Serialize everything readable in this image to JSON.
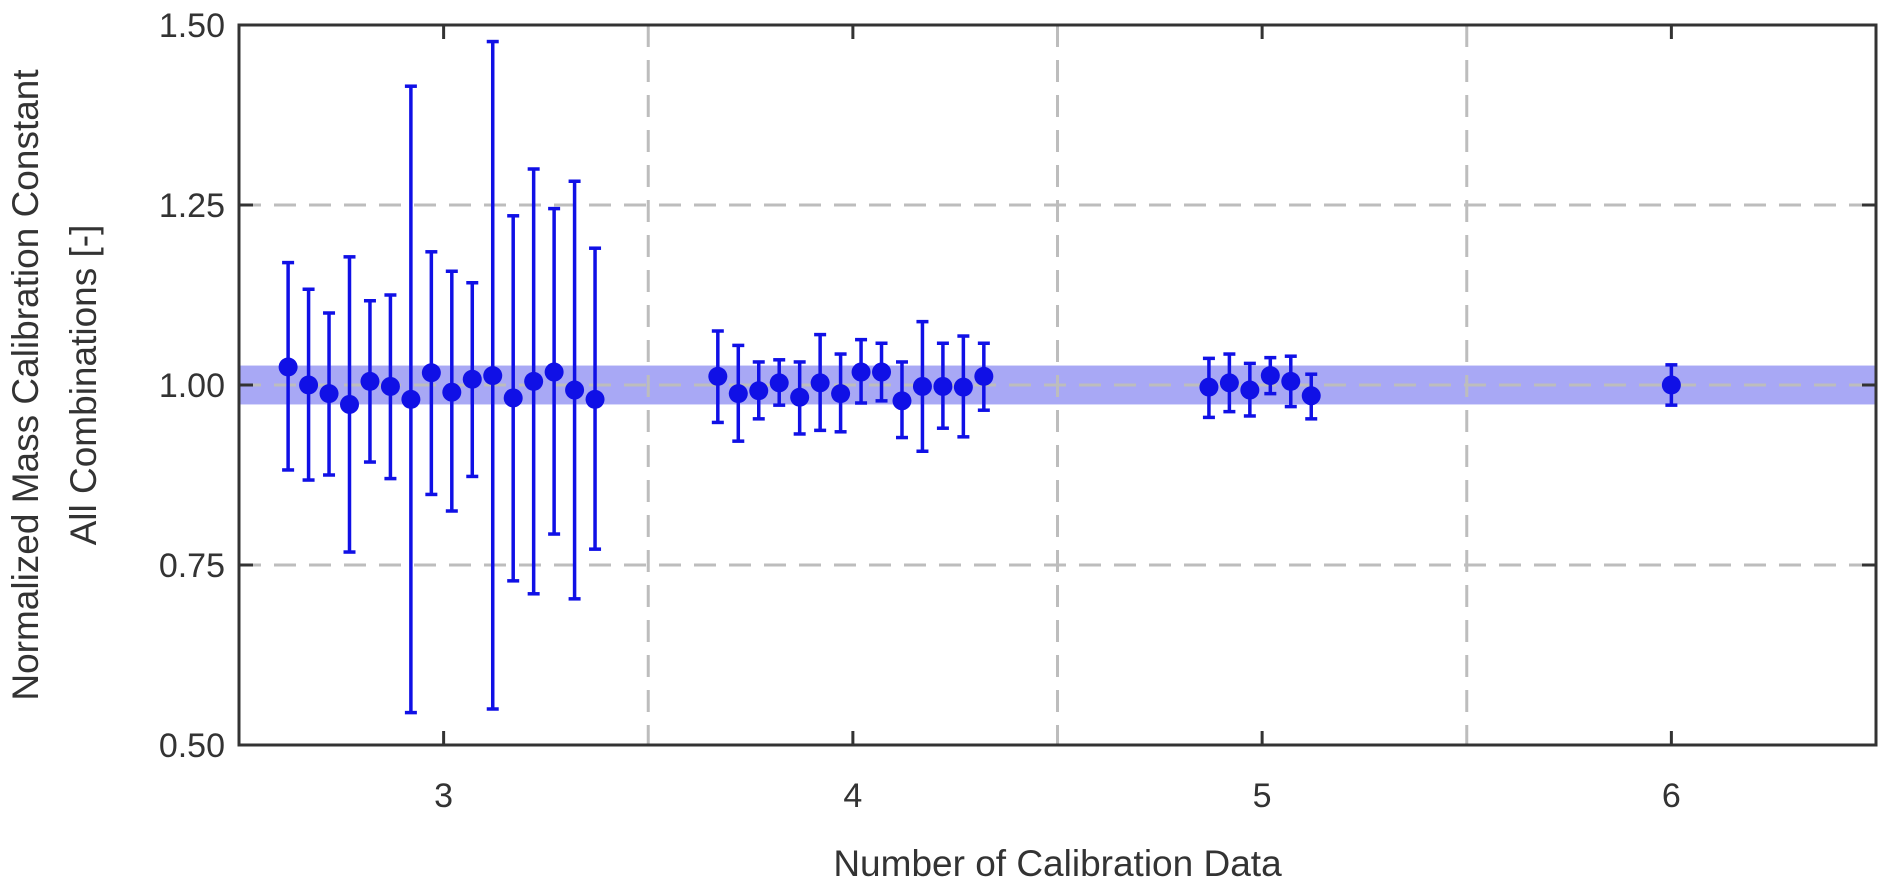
{
  "chart_data": {
    "type": "scatter",
    "title": "",
    "xlabel": "Number of Calibration Data",
    "ylabel_lines": [
      "Normalized Mass Calibration Constant",
      "All Combinations [-]"
    ],
    "xlim": [
      2.5,
      6.5
    ],
    "ylim": [
      0.5,
      1.5
    ],
    "xticks": [
      3,
      4,
      5,
      6
    ],
    "xtick_labels": [
      "3",
      "4",
      "5",
      "6"
    ],
    "yticks": [
      0.5,
      0.75,
      1.0,
      1.25,
      1.5
    ],
    "ytick_labels": [
      "0.50",
      "0.75",
      "1.00",
      "1.25",
      "1.50"
    ],
    "grid": {
      "horizontal": [
        0.75,
        1.0,
        1.25
      ],
      "vertical": [
        3.5,
        4.5,
        5.5
      ],
      "style": "dashed"
    },
    "band": {
      "lower": 0.973,
      "upper": 1.027,
      "color": "#a8a8f5"
    },
    "colors": {
      "points": "#1010e6",
      "grid": "#bdbdbd",
      "axes": "#333333"
    },
    "series": [
      {
        "x": [
          2.62,
          2.67,
          2.72,
          2.77,
          2.82,
          2.87,
          2.92,
          2.97,
          3.02,
          3.07,
          3.12,
          3.17,
          3.22,
          3.27,
          3.32,
          3.37
        ],
        "y": [
          1.025,
          1.0,
          0.988,
          0.973,
          1.005,
          0.998,
          0.98,
          1.017,
          0.99,
          1.008,
          1.013,
          0.982,
          1.005,
          1.018,
          0.993,
          0.98
        ],
        "y_low": [
          0.882,
          0.868,
          0.875,
          0.768,
          0.893,
          0.87,
          0.545,
          0.848,
          0.825,
          0.873,
          0.55,
          0.728,
          0.71,
          0.793,
          0.703,
          0.772
        ],
        "y_high": [
          1.17,
          1.133,
          1.1,
          1.178,
          1.117,
          1.125,
          1.415,
          1.185,
          1.158,
          1.142,
          1.477,
          1.235,
          1.3,
          1.245,
          1.283,
          1.19
        ]
      },
      {
        "x": [
          3.67,
          3.72,
          3.77,
          3.82,
          3.87,
          3.92,
          3.97,
          4.02,
          4.07,
          4.12,
          4.17,
          4.22,
          4.27,
          4.32
        ],
        "y": [
          1.012,
          0.988,
          0.992,
          1.003,
          0.983,
          1.003,
          0.988,
          1.018,
          1.018,
          0.978,
          0.998,
          0.998,
          0.997,
          1.012
        ],
        "y_low": [
          0.948,
          0.922,
          0.953,
          0.972,
          0.932,
          0.937,
          0.935,
          0.975,
          0.978,
          0.927,
          0.908,
          0.94,
          0.928,
          0.965
        ],
        "y_high": [
          1.075,
          1.055,
          1.032,
          1.035,
          1.032,
          1.07,
          1.043,
          1.063,
          1.058,
          1.032,
          1.088,
          1.058,
          1.068,
          1.058
        ]
      },
      {
        "x": [
          4.87,
          4.92,
          4.97,
          5.02,
          5.07,
          5.12
        ],
        "y": [
          0.997,
          1.003,
          0.993,
          1.013,
          1.005,
          0.985
        ],
        "y_low": [
          0.955,
          0.963,
          0.957,
          0.988,
          0.97,
          0.953
        ],
        "y_high": [
          1.037,
          1.043,
          1.03,
          1.038,
          1.04,
          1.015
        ]
      },
      {
        "x": [
          6.0
        ],
        "y": [
          1.0
        ],
        "y_low": [
          0.972
        ],
        "y_high": [
          1.028
        ]
      }
    ]
  }
}
